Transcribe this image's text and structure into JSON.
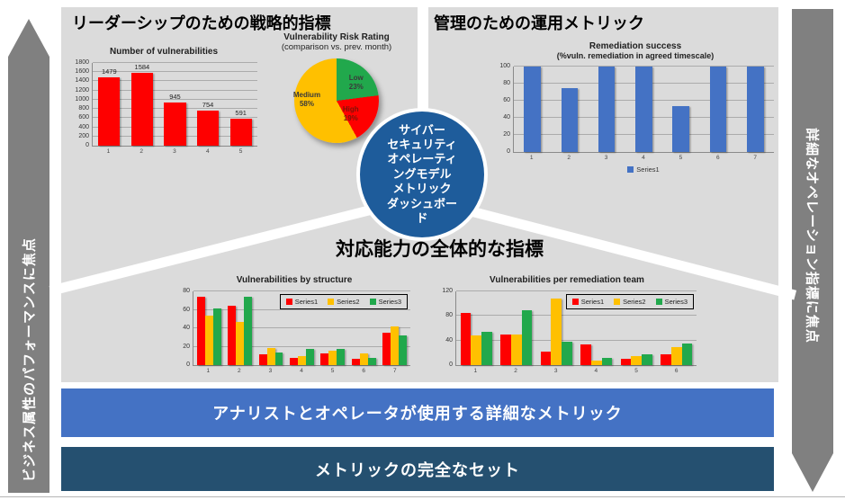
{
  "left_arrow": {
    "label": "ビジネス属性のパフォーマンスに焦点"
  },
  "right_arrow": {
    "label": "詳細なオペレーション指標に焦点"
  },
  "panels": {
    "leadership": {
      "title": "リーダーシップのための戦略的指標"
    },
    "management": {
      "title": "管理のための運用メトリック"
    },
    "response": {
      "title": "対応能力の全体的な指標"
    }
  },
  "center_circle": {
    "color": "#1E5C9B",
    "lines": [
      "サイバー",
      "セキュリティ",
      "オペレーティ",
      "ングモデル",
      "メトリック",
      "ダッシュボー",
      "ド"
    ]
  },
  "banners": {
    "analyst": {
      "label": "アナリストとオペレータが使用する詳細なメトリック",
      "color": "#4472C4"
    },
    "full_set": {
      "label": "メトリックの完全なセット",
      "color": "#255070"
    }
  },
  "colors": {
    "panel_gray": "#DBDBDB",
    "arrow_gray": "#808080",
    "series_red": "#FE0000",
    "series_yellow": "#FFC000",
    "series_green": "#21A84C",
    "series_blue": "#4472C4"
  },
  "chart_data": [
    {
      "id": "vuln-count",
      "type": "bar",
      "title": "Number of vulnerabilities",
      "categories": [
        "1",
        "2",
        "3",
        "4",
        "5"
      ],
      "values": [
        1479,
        1584,
        945,
        754,
        591
      ],
      "data_labels": true,
      "bar_color": "#FE0000",
      "ylim": [
        0,
        1800
      ],
      "ytick_step": 200,
      "grid": true,
      "legend": "none"
    },
    {
      "id": "risk-rating",
      "type": "pie",
      "title": "Vulnerability Risk Rating",
      "subtitle": "(comparison vs. prev. month)",
      "slices": [
        {
          "label": "Low",
          "value": 23,
          "color": "#21A84C"
        },
        {
          "label": "High",
          "value": 19,
          "color": "#FE0000"
        },
        {
          "label": "Medium",
          "value": 58,
          "color": "#FFC000"
        }
      ]
    },
    {
      "id": "remediation-success",
      "type": "bar",
      "title": "Remediation success",
      "subtitle": "(%vuln. remediation in agreed  timescale)",
      "categories": [
        "1",
        "2",
        "3",
        "4",
        "5",
        "6",
        "7"
      ],
      "series": [
        {
          "name": "Series1",
          "color": "#4472C4",
          "values": [
            100,
            75,
            100,
            100,
            54,
            100,
            100
          ]
        }
      ],
      "ylim": [
        0,
        100
      ],
      "ytick_step": 20,
      "grid": true,
      "legend": "bottom"
    },
    {
      "id": "vuln-structure",
      "type": "bar",
      "title": "Vulnerabilities by structure",
      "categories": [
        "1",
        "2",
        "3",
        "4",
        "5",
        "6",
        "7"
      ],
      "series": [
        {
          "name": "Series1",
          "color": "#FE0000",
          "values": [
            74,
            64,
            12,
            8,
            13,
            7,
            35
          ]
        },
        {
          "name": "Series2",
          "color": "#FFC000",
          "values": [
            54,
            47,
            19,
            10,
            16,
            13,
            42
          ]
        },
        {
          "name": "Series3",
          "color": "#21A84C",
          "values": [
            61,
            74,
            14,
            18,
            18,
            8,
            32
          ]
        }
      ],
      "ylim": [
        0,
        80
      ],
      "ytick_step": 20,
      "grid": true,
      "legend": "box"
    },
    {
      "id": "vuln-team",
      "type": "bar",
      "title": "Vulnerabilities per remediation team",
      "categories": [
        "1",
        "2",
        "3",
        "4",
        "5",
        "6"
      ],
      "series": [
        {
          "name": "Series1",
          "color": "#FE0000",
          "values": [
            85,
            50,
            22,
            33,
            10,
            17
          ]
        },
        {
          "name": "Series2",
          "color": "#FFC000",
          "values": [
            48,
            50,
            108,
            8,
            15,
            30
          ]
        },
        {
          "name": "Series3",
          "color": "#21A84C",
          "values": [
            54,
            90,
            38,
            12,
            17,
            35
          ]
        }
      ],
      "ylim": [
        0,
        120
      ],
      "ytick_step": 40,
      "grid": true,
      "legend": "box"
    }
  ]
}
